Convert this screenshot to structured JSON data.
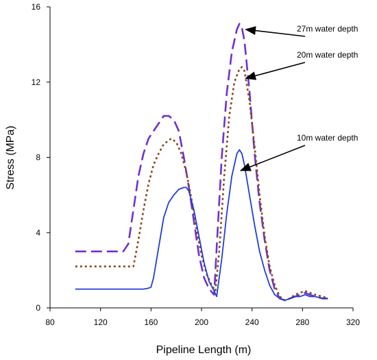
{
  "chart_data": {
    "type": "line",
    "title": "",
    "xlabel": "Pipeline Length (m)",
    "ylabel": "Stress (MPa)",
    "xlim": [
      80,
      320
    ],
    "ylim": [
      0,
      16
    ],
    "x_ticks": [
      80,
      120,
      160,
      200,
      240,
      280,
      320
    ],
    "y_ticks": [
      0,
      4,
      8,
      12,
      16
    ],
    "grid": false,
    "legend": "none",
    "series": [
      {
        "name": "27m water depth",
        "color": "#7030d0",
        "style": "long-dash",
        "x": [
          100,
          138,
          142,
          146,
          150,
          154,
          158,
          162,
          166,
          170,
          174,
          178,
          182,
          186,
          190,
          194,
          198,
          202,
          206,
          210,
          212,
          216,
          220,
          224,
          228,
          230,
          232,
          234,
          238,
          242,
          246,
          250,
          254,
          258,
          262,
          266,
          270,
          274,
          278,
          282,
          286,
          290,
          296,
          300
        ],
        "y": [
          3.0,
          3.0,
          3.4,
          5.2,
          7.0,
          8.2,
          9.0,
          9.4,
          9.8,
          10.2,
          10.2,
          10.0,
          9.4,
          8.0,
          6.4,
          4.6,
          2.8,
          1.6,
          1.0,
          0.7,
          3.2,
          8.0,
          11.4,
          13.6,
          14.8,
          15.1,
          14.9,
          14.2,
          11.5,
          8.2,
          5.6,
          3.6,
          2.0,
          1.0,
          0.5,
          0.4,
          0.5,
          0.6,
          0.7,
          0.8,
          0.7,
          0.6,
          0.5,
          0.5
        ]
      },
      {
        "name": "20m water depth",
        "color": "#8b4513",
        "style": "dotted",
        "x": [
          100,
          146,
          150,
          154,
          158,
          162,
          166,
          170,
          174,
          176,
          180,
          184,
          188,
          192,
          196,
          200,
          204,
          208,
          211,
          214,
          218,
          222,
          226,
          230,
          232,
          234,
          238,
          242,
          246,
          250,
          254,
          258,
          262,
          266,
          270,
          274,
          278,
          282,
          286,
          290,
          296,
          300
        ],
        "y": [
          2.2,
          2.2,
          3.6,
          5.2,
          6.6,
          7.6,
          8.2,
          8.7,
          8.9,
          9.0,
          8.8,
          8.2,
          7.2,
          5.8,
          4.2,
          2.8,
          1.8,
          1.2,
          0.9,
          3.0,
          7.0,
          10.2,
          12.0,
          12.7,
          12.8,
          12.6,
          11.0,
          8.6,
          6.0,
          3.8,
          2.2,
          1.2,
          0.6,
          0.4,
          0.5,
          0.7,
          0.8,
          0.9,
          0.8,
          0.7,
          0.6,
          0.5
        ]
      },
      {
        "name": "10m water depth",
        "color": "#1f3ed8",
        "style": "solid",
        "x": [
          100,
          150,
          154,
          158,
          160,
          162,
          166,
          170,
          174,
          178,
          182,
          186,
          188,
          190,
          194,
          198,
          202,
          206,
          210,
          212,
          216,
          220,
          224,
          228,
          230,
          232,
          234,
          238,
          242,
          246,
          250,
          254,
          258,
          262,
          266,
          270,
          274,
          278,
          282,
          286,
          290,
          296,
          300
        ],
        "y": [
          1.0,
          1.0,
          1.0,
          1.05,
          1.1,
          1.6,
          3.2,
          4.8,
          5.6,
          6.0,
          6.3,
          6.4,
          6.4,
          6.2,
          5.2,
          3.8,
          2.4,
          1.4,
          0.9,
          0.6,
          2.6,
          5.0,
          7.0,
          8.2,
          8.4,
          8.2,
          7.6,
          6.0,
          4.4,
          3.0,
          2.0,
          1.2,
          0.7,
          0.5,
          0.4,
          0.5,
          0.6,
          0.6,
          0.7,
          0.6,
          0.6,
          0.5,
          0.5
        ]
      }
    ],
    "annotations": [
      {
        "text": "27m water depth",
        "points_to": [
          234,
          14.8
        ]
      },
      {
        "text": "20m water depth",
        "points_to": [
          234,
          12.2
        ]
      },
      {
        "text": "10m water depth",
        "points_to": [
          230,
          7.3
        ]
      }
    ]
  }
}
